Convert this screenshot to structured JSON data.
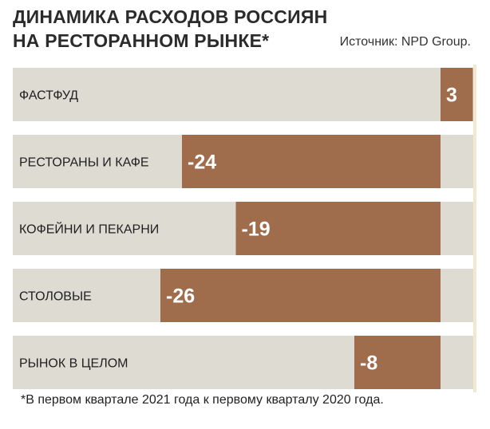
{
  "chart_data": {
    "type": "bar",
    "orientation": "horizontal",
    "title": "ДИНАМИКА РАСХОДОВ РОССИЯН НА РЕСТОРАННОМ РЫНКЕ*",
    "title_lines": [
      "ДИНАМИКА РАСХОДОВ РОССИЯН",
      "НА РЕСТОРАННОМ РЫНКЕ*"
    ],
    "source": "Источник: NPD Group.",
    "categories": [
      "ФАСТФУД",
      "РЕСТОРАНЫ И КАФЕ",
      "КОФЕЙНИ И ПЕКАРНИ",
      "СТОЛОВЫЕ",
      "РЫНОК В ЦЕЛОМ"
    ],
    "values": [
      3,
      -24,
      -19,
      -26,
      -8
    ],
    "value_labels": [
      "3",
      "-24",
      "-19",
      "-26",
      "-8"
    ],
    "footnote": "*В первом квартале 2021 года к первому кварталу 2020 года.",
    "colors": {
      "bar": "#a06d4c",
      "background": "#dedbd3",
      "zero_line": "#f2e7cf"
    }
  }
}
